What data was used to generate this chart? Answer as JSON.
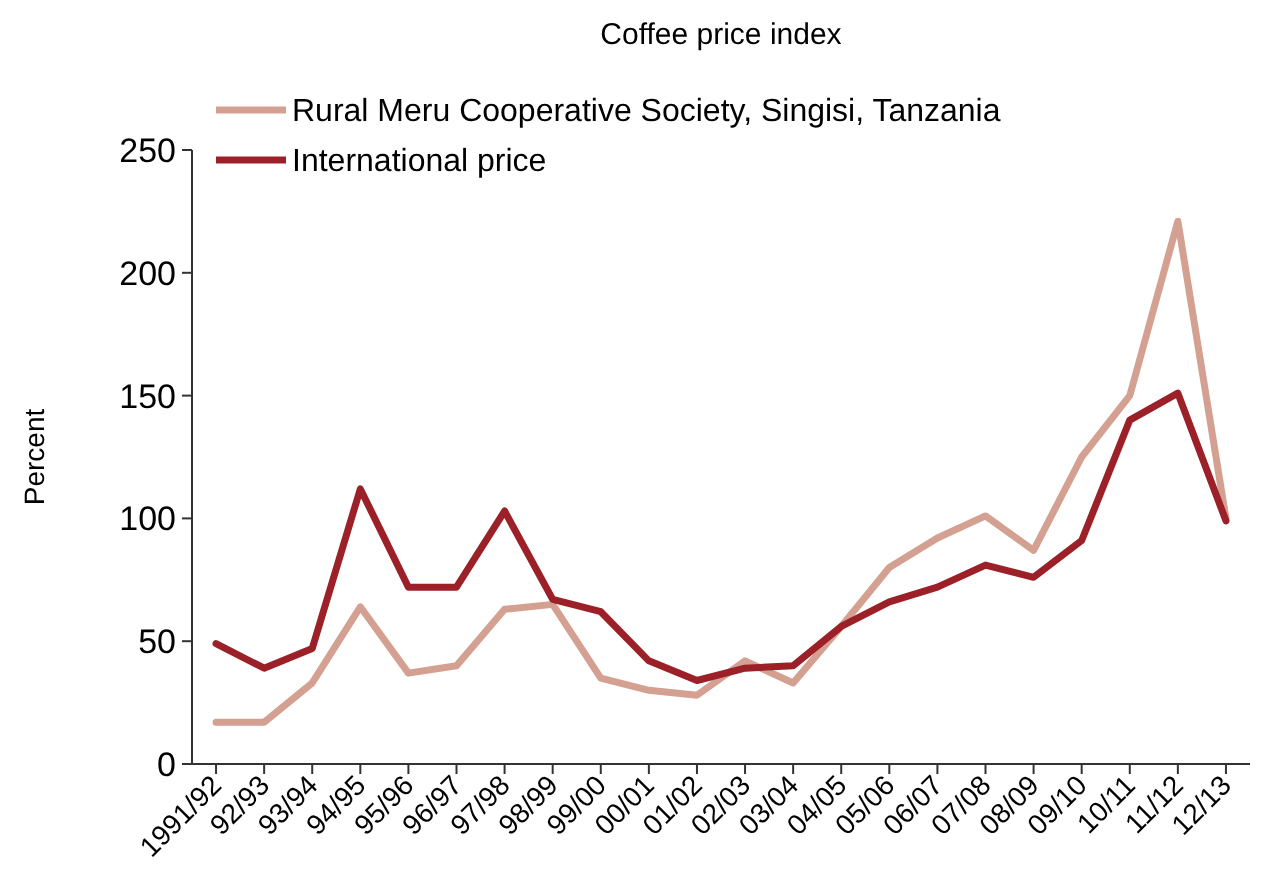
{
  "chart_data": {
    "type": "line",
    "title": "Coffee price index",
    "ylabel": "Percent",
    "categories": [
      "1991/92",
      "92/93",
      "93/94",
      "94/95",
      "95/96",
      "96/97",
      "97/98",
      "98/99",
      "99/00",
      "00/01",
      "01/02",
      "02/03",
      "03/04",
      "04/05",
      "05/06",
      "06/07",
      "07/08",
      "08/09",
      "09/10",
      "10/11",
      "11/12",
      "12/13"
    ],
    "series": [
      {
        "name": "Rural Meru Cooperative Society, Singisi, Tanzania",
        "color": "#d4a091",
        "values": [
          17,
          17,
          33,
          64,
          37,
          40,
          63,
          65,
          35,
          30,
          28,
          42,
          33,
          56,
          80,
          92,
          101,
          87,
          125,
          150,
          221,
          100
        ]
      },
      {
        "name": "International price",
        "color": "#9b2028",
        "values": [
          49,
          39,
          47,
          112,
          72,
          72,
          103,
          67,
          62,
          42,
          34,
          39,
          40,
          56,
          66,
          72,
          81,
          76,
          91,
          140,
          151,
          99
        ]
      }
    ],
    "ylim": [
      0,
      250
    ],
    "yticks": [
      0,
      50,
      100,
      150,
      200,
      250
    ],
    "grid": false,
    "legend": "top left",
    "marker": "none",
    "line_style": "solid"
  }
}
